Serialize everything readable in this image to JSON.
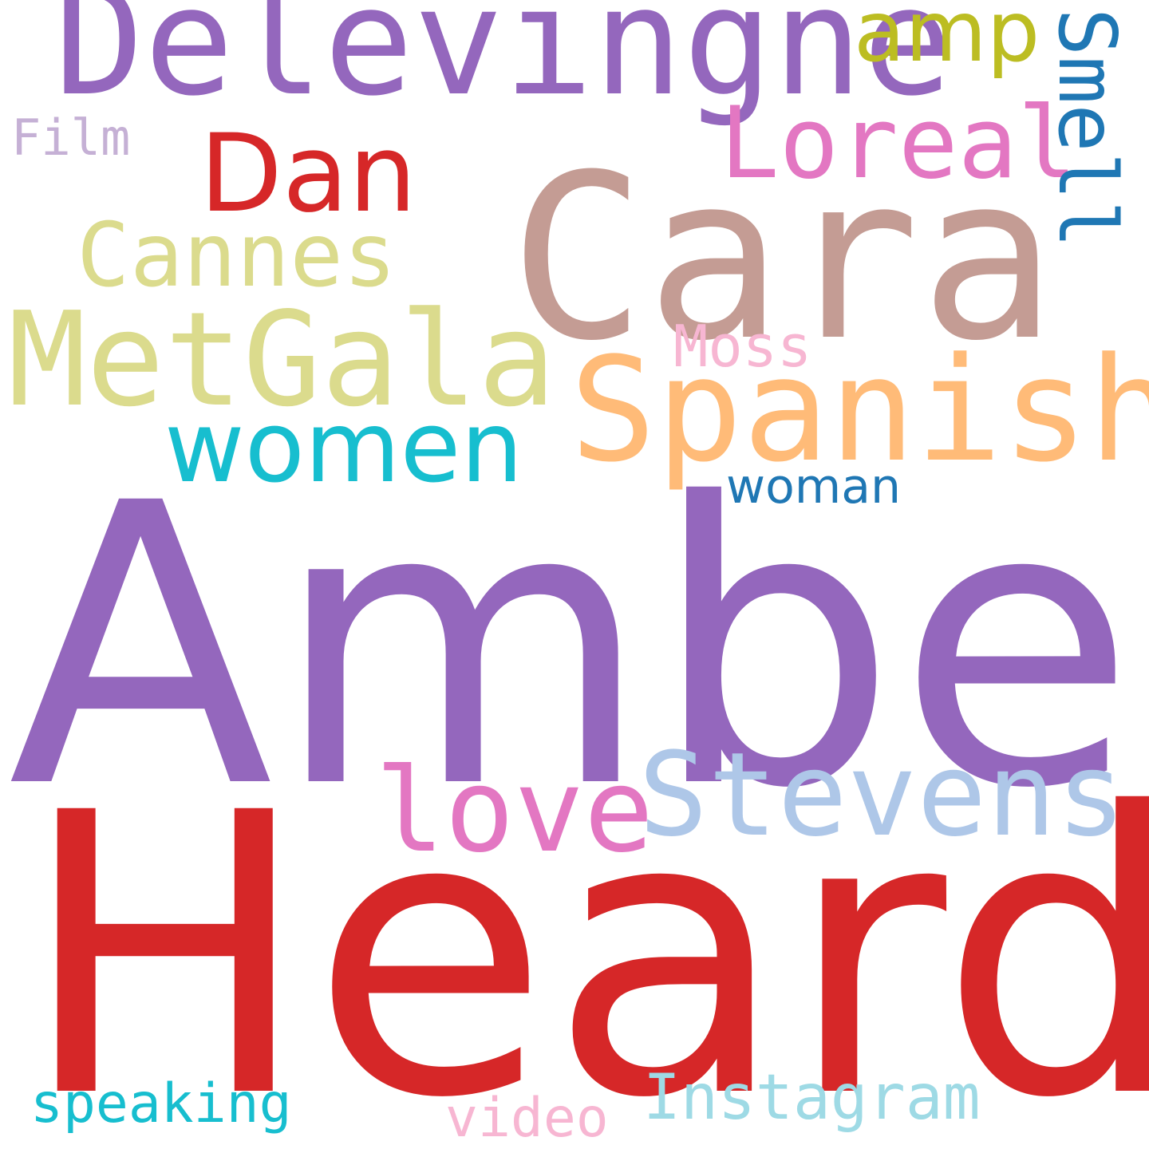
{
  "words": {
    "amber": {
      "text": "Amber",
      "color": "#9467bd"
    },
    "heard": {
      "text": "Heard",
      "color": "#d62728"
    },
    "cara": {
      "text": "Cara",
      "color": "#c49c94"
    },
    "delevingne": {
      "text": "Delevingne",
      "color": "#9467bd"
    },
    "metgala": {
      "text": "MetGala",
      "color": "#dbdb8d"
    },
    "spanish": {
      "text": "Spanish",
      "color": "#ffbb78"
    },
    "stevens": {
      "text": "Stevens",
      "color": "#aec7e8"
    },
    "love": {
      "text": "love",
      "color": "#e377c2"
    },
    "women": {
      "text": "women",
      "color": "#17becf"
    },
    "dan": {
      "text": "Dan",
      "color": "#d62728"
    },
    "cannes": {
      "text": "Cannes",
      "color": "#dbdb8d"
    },
    "loreal": {
      "text": "Loreal",
      "color": "#e377c2"
    },
    "amp": {
      "text": "amp",
      "color": "#bcbd22"
    },
    "smell": {
      "text": "Smell",
      "color": "#1f77b4"
    },
    "moss": {
      "text": "Moss",
      "color": "#f7b6d2"
    },
    "woman": {
      "text": "woman",
      "color": "#1f77b4"
    },
    "film": {
      "text": "Film",
      "color": "#c5b0d5"
    },
    "speaking": {
      "text": "speaking",
      "color": "#17becf"
    },
    "video": {
      "text": "video",
      "color": "#f7b6d2"
    },
    "instagram": {
      "text": "Instagram",
      "color": "#9edae5"
    }
  }
}
